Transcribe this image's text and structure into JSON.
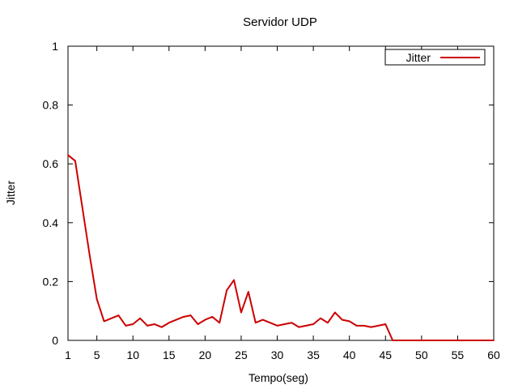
{
  "chart_data": {
    "type": "line",
    "title": "Servidor UDP",
    "xlabel": "Tempo(seg)",
    "ylabel": "Jitter",
    "xlim": [
      1,
      60
    ],
    "ylim": [
      0,
      1
    ],
    "x_ticks": [
      "1",
      "5",
      "10",
      "15",
      "20",
      "25",
      "30",
      "35",
      "40",
      "45",
      "50",
      "55",
      "60"
    ],
    "x_tick_values": [
      1,
      5,
      10,
      15,
      20,
      25,
      30,
      35,
      40,
      45,
      50,
      55,
      60
    ],
    "y_ticks": [
      "0",
      "0.2",
      "0.4",
      "0.6",
      "0.8",
      "1"
    ],
    "y_tick_values": [
      0,
      0.2,
      0.4,
      0.6,
      0.8,
      1
    ],
    "grid": false,
    "legend_position": "top-right",
    "series": [
      {
        "name": "Jitter",
        "color": "#cc0000",
        "x": [
          1,
          2,
          3,
          4,
          5,
          6,
          7,
          8,
          9,
          10,
          11,
          12,
          13,
          14,
          15,
          16,
          17,
          18,
          19,
          20,
          21,
          22,
          23,
          24,
          25,
          26,
          27,
          28,
          29,
          30,
          31,
          32,
          33,
          34,
          35,
          36,
          37,
          38,
          39,
          40,
          41,
          42,
          43,
          44,
          45,
          46,
          47,
          48,
          49,
          50,
          51,
          52,
          53,
          54,
          55,
          56,
          57,
          58,
          59,
          60
        ],
        "values": [
          0.63,
          0.61,
          0.45,
          0.29,
          0.14,
          0.065,
          0.075,
          0.085,
          0.05,
          0.055,
          0.075,
          0.05,
          0.055,
          0.045,
          0.06,
          0.07,
          0.08,
          0.085,
          0.055,
          0.07,
          0.08,
          0.06,
          0.17,
          0.205,
          0.095,
          0.165,
          0.06,
          0.07,
          0.06,
          0.05,
          0.055,
          0.06,
          0.045,
          0.05,
          0.055,
          0.075,
          0.06,
          0.095,
          0.07,
          0.065,
          0.05,
          0.05,
          0.045,
          0.05,
          0.055,
          0,
          0,
          0,
          0,
          0,
          0,
          0,
          0,
          0,
          0,
          0,
          0,
          0,
          0,
          0
        ]
      }
    ]
  }
}
